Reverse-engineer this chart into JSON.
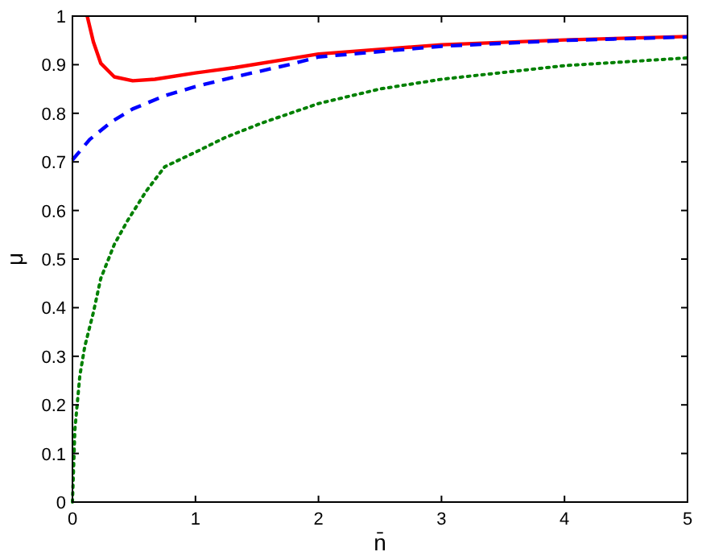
{
  "chart_data": {
    "type": "line",
    "xlabel": "n̄",
    "ylabel": "μ",
    "xlim": [
      0,
      5
    ],
    "ylim": [
      0,
      1
    ],
    "xticks": [
      0,
      1,
      2,
      3,
      4,
      5
    ],
    "yticks": [
      0,
      0.1,
      0.2,
      0.3,
      0.4,
      0.5,
      0.6,
      0.7,
      0.8,
      0.9,
      1
    ],
    "grid": false,
    "series": [
      {
        "color": "#ff0000",
        "line_style": "solid",
        "x": [
          0.12,
          0.17,
          0.23,
          0.34,
          0.49,
          0.67,
          1,
          1.32,
          1.76,
          2,
          3,
          4,
          5
        ],
        "values": [
          1,
          0.947,
          0.903,
          0.875,
          0.867,
          0.87,
          0.883,
          0.894,
          0.912,
          0.922,
          0.941,
          0.951,
          0.958
        ]
      },
      {
        "color": "#0000ff",
        "line_style": "dashed",
        "x": [
          0,
          0.14,
          0.32,
          0.49,
          0.75,
          1,
          1.32,
          1.76,
          2,
          3,
          4,
          5
        ],
        "values": [
          0.704,
          0.746,
          0.783,
          0.809,
          0.836,
          0.855,
          0.875,
          0.9,
          0.916,
          0.938,
          0.95,
          0.957
        ]
      },
      {
        "color": "#008000",
        "line_style": "dotted",
        "x": [
          0,
          0.02,
          0.06,
          0.1,
          0.17,
          0.23,
          0.34,
          0.45,
          0.6,
          0.75,
          1,
          1.24,
          1.54,
          2,
          2.5,
          3,
          3.5,
          4,
          4.5,
          5
        ],
        "values": [
          0,
          0.15,
          0.26,
          0.32,
          0.39,
          0.46,
          0.53,
          0.58,
          0.64,
          0.69,
          0.72,
          0.75,
          0.78,
          0.82,
          0.85,
          0.87,
          0.884,
          0.898,
          0.906,
          0.914
        ]
      }
    ]
  }
}
